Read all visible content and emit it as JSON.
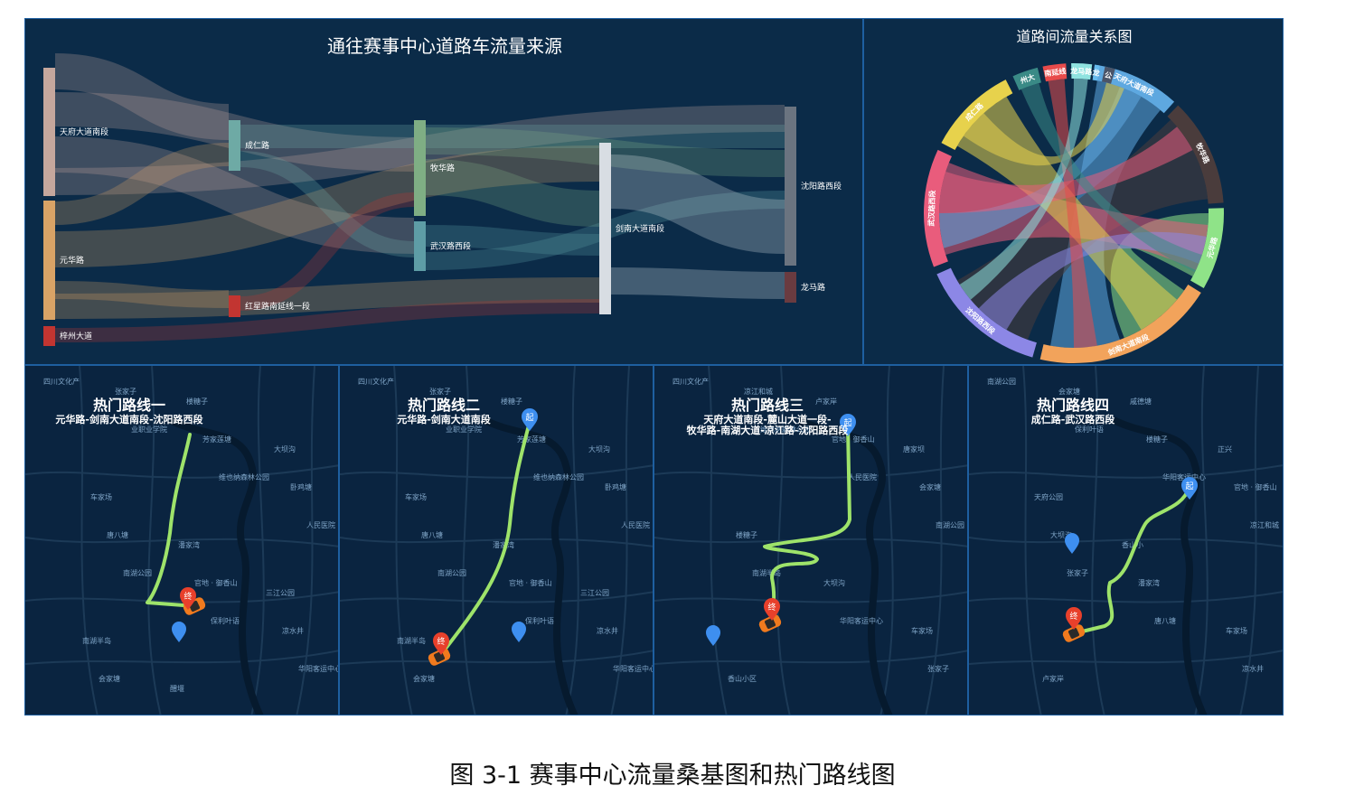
{
  "sankey": {
    "title": "通往赛事中心道路车流量来源",
    "nodes": {
      "tianfu": "天府大道南段",
      "yuanhua": "元华路",
      "zizhou": "梓州大道",
      "chengren": "成仁路",
      "hongxing": "红星路南延线一段",
      "muhua": "牧华路",
      "wuhan": "武汉路西段",
      "jiannan": "剑南大道南段",
      "shenyang": "沈阳路西段",
      "longma": "龙马路"
    },
    "colors": {
      "tianfu": "#c5a79d",
      "yuanhua": "#d9a366",
      "zizhou": "#c23531",
      "chengren": "#6eaaa5",
      "hongxing": "#c23531",
      "muhua": "#7fae84",
      "wuhan": "#5e9da6",
      "jiannan": "#d8dde3",
      "shenyang": "#6b7480",
      "longma": "#6a3b40"
    }
  },
  "chord": {
    "title": "道路间流量关系图",
    "segments": [
      {
        "label": "天府大道南段",
        "color": "#5ea8e0"
      },
      {
        "label": "牧华路",
        "color": "#4a3c3c"
      },
      {
        "label": "元华路",
        "color": "#8fe388"
      },
      {
        "label": "剑南大道南段",
        "color": "#f2a35b"
      },
      {
        "label": "沈阳路西段",
        "color": "#8c87e6"
      },
      {
        "label": "武汉路西段",
        "color": "#e95c7c"
      },
      {
        "label": "成仁路",
        "color": "#e7d24c"
      },
      {
        "label": "州大",
        "color": "#3a8a86"
      },
      {
        "label": "南延线",
        "color": "#e84b4b"
      },
      {
        "label": "龙马路",
        "color": "#8fe3e0"
      },
      {
        "label": "龙",
        "color": "#66bbee"
      },
      {
        "label": "公",
        "color": "#4a5468"
      }
    ]
  },
  "maps": [
    {
      "title": "热门路线一",
      "subtitle": [
        "元华路-剑南大道南段-沈阳路西段"
      ],
      "start_label": "起",
      "end_label": "终",
      "labels": [
        "四川文化产",
        "业职业学院",
        "维也纳森林公园",
        "人民医院",
        "南湖公园",
        "保利叶语",
        "华阳客运中心",
        "张家子",
        "芳家莲塘",
        "卧鸡塘",
        "唐八塘",
        "官地 · 御香山",
        "凉水井",
        "会家塘",
        "楼糖子",
        "大坝沟",
        "车家场",
        "潘家湾",
        "三江公园",
        "南湖半岛",
        "醴堰"
      ]
    },
    {
      "title": "热门路线二",
      "subtitle": [
        "元华路-剑南大道南段"
      ],
      "start_label": "起",
      "end_label": "终",
      "labels": [
        "四川文化产",
        "业职业学院",
        "维也纳森林公园",
        "人民医院",
        "南湖公园",
        "保利叶语",
        "华阳客运中心",
        "张家子",
        "芳家莲塘",
        "卧鸡塘",
        "唐八塘",
        "官地 · 御香山",
        "凉水井",
        "会家塘",
        "楼糖子",
        "大坝沟",
        "车家场",
        "潘家湾",
        "三江公园",
        "南湖半岛"
      ]
    },
    {
      "title": "热门路线三",
      "subtitle": [
        "天府大道南段-麓山大道一段-",
        "牧华路-南湖大道-凉江路-沈阳路西段"
      ],
      "start_label": "起",
      "end_label": "终",
      "labels": [
        "四川文化产",
        "维也纳森林公园",
        "人民医院",
        "南湖公园",
        "南湖半岛",
        "华阳客运中心",
        "张家子",
        "凉江和城",
        "官地 · 御香山",
        "会家塘",
        "楼糖子",
        "大坝沟",
        "车家场",
        "香山小区",
        "卢家岸",
        "唐家坝"
      ]
    },
    {
      "title": "热门路线四",
      "subtitle": [
        "成仁路-武汉路西段"
      ],
      "start_label": "起",
      "end_label": "终",
      "labels": [
        "南湖公园",
        "保利叶语",
        "华阳客运中心",
        "凉江和城",
        "张家子",
        "唐八塘",
        "凉水井",
        "会家塘",
        "楼糖子",
        "官地 · 御香山",
        "大坝沟",
        "潘家湾",
        "车家场",
        "卢家岸",
        "戚德塘",
        "正兴",
        "天府公园",
        "香山小"
      ]
    }
  ],
  "caption": "图 3-1  赛事中心流量桑基图和热门路线图"
}
